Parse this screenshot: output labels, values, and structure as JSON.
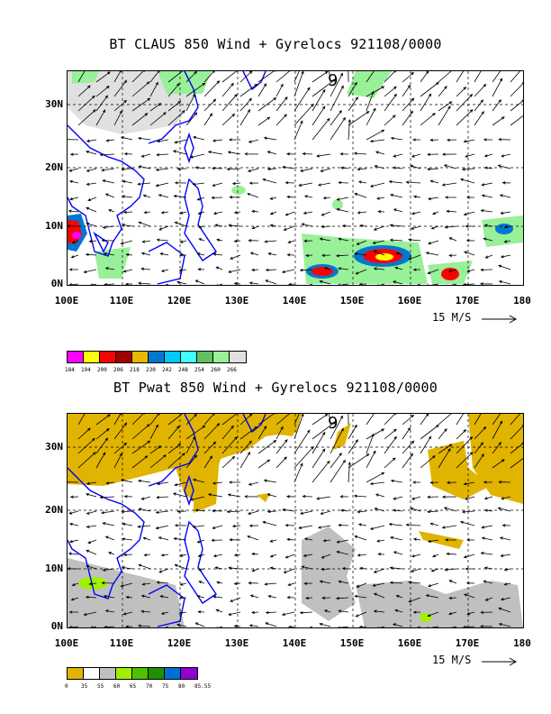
{
  "top_panel": {
    "title": "BT CLAUS 850 Wind + Gyrelocs 921108/0000",
    "y_ticks": [
      "30N",
      "20N",
      "10N",
      "0N"
    ],
    "x_ticks": [
      "100E",
      "110E",
      "120E",
      "130E",
      "140E",
      "150E",
      "160E",
      "170E",
      "180"
    ],
    "vector_scale_label": "15 M/S",
    "storm_marker": "9",
    "colorbar": {
      "labels": [
        "184",
        "194",
        "200",
        "206",
        "218",
        "230",
        "242",
        "248",
        "254",
        "260",
        "266"
      ],
      "colors": [
        "#ff00ff",
        "#ffff00",
        "#ff0000",
        "#a00000",
        "#e8b800",
        "#0078d0",
        "#00c8ff",
        "#40ffff",
        "#60c060",
        "#98f098",
        "#e0e0e0"
      ]
    }
  },
  "bottom_panel": {
    "title": "BT Pwat 850 Wind + Gyrelocs 921108/0000",
    "y_ticks": [
      "30N",
      "20N",
      "10N",
      "0N"
    ],
    "x_ticks": [
      "100E",
      "110E",
      "120E",
      "130E",
      "140E",
      "150E",
      "160E",
      "170E",
      "180"
    ],
    "vector_scale_label": "15 M/S",
    "storm_marker": "9",
    "colorbar": {
      "labels": [
        "0",
        "35",
        "55",
        "60",
        "65",
        "70",
        "75",
        "80",
        "85.55"
      ],
      "colors": [
        "#e0b400",
        "#ffffff",
        "#c0c0c0",
        "#a0f000",
        "#50c000",
        "#209000",
        "#0070d0",
        "#9000d0"
      ]
    }
  }
}
